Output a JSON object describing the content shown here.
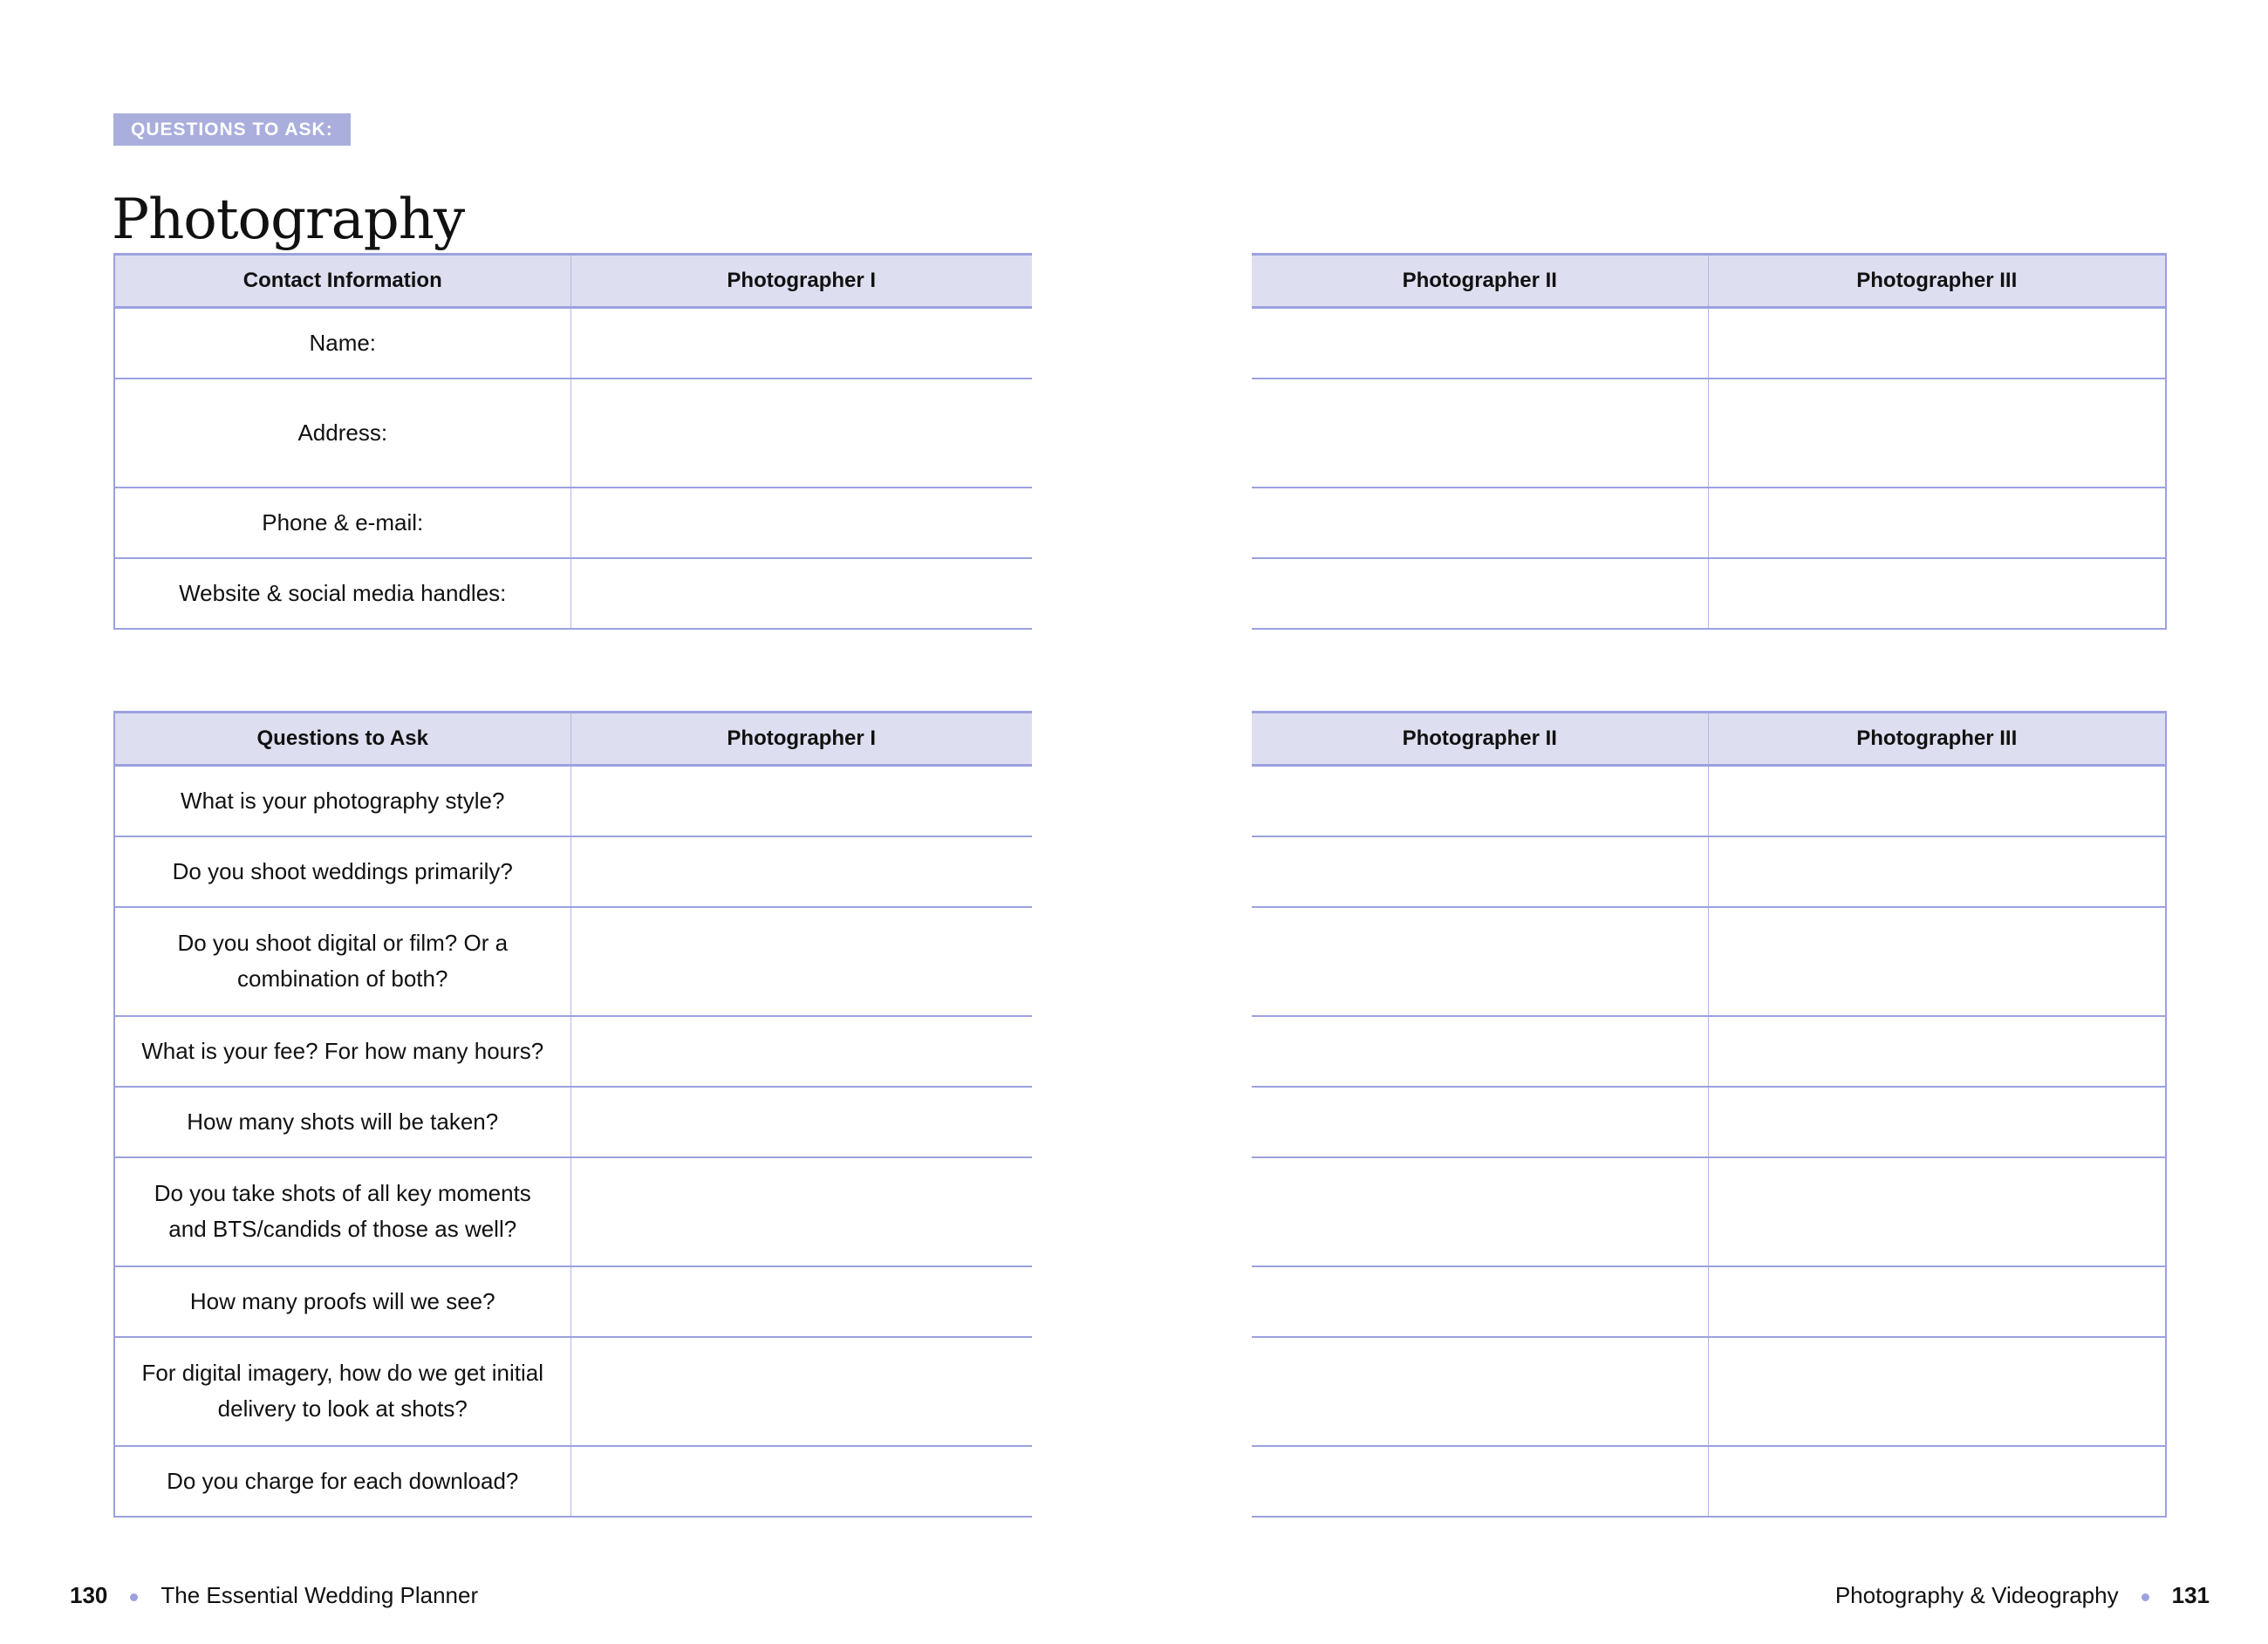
{
  "tag": "QUESTIONS TO ASK:",
  "title": "Photography",
  "contact_table": {
    "headers": [
      "Contact Information",
      "Photographer I",
      "Photographer II",
      "Photographer III"
    ],
    "rows": [
      "Name:",
      "Address:",
      "Phone & e-mail:",
      "Website & social media handles:"
    ]
  },
  "questions_table": {
    "headers": [
      "Questions to Ask",
      "Photographer I",
      "Photographer II",
      "Photographer III"
    ],
    "rows": [
      "What is your photography style?",
      "Do you shoot weddings primarily?",
      "Do you shoot digital or film? Or a combination of both?",
      "What is your fee? For how many hours?",
      "How many shots will be taken?",
      "Do you take shots of all key moments and BTS/candids of those as well?",
      "How many proofs will we see?",
      "For digital imagery, how do we get initial delivery to look at shots?",
      "Do you charge for each download?"
    ]
  },
  "footer": {
    "left_page": "130",
    "left_title": "The Essential Wedding Planner",
    "right_title": "Photography & Videography",
    "right_page": "131"
  },
  "colors": {
    "accent": "#a9aedd",
    "header_bg": "#dddff0",
    "border": "#9ca1df"
  }
}
